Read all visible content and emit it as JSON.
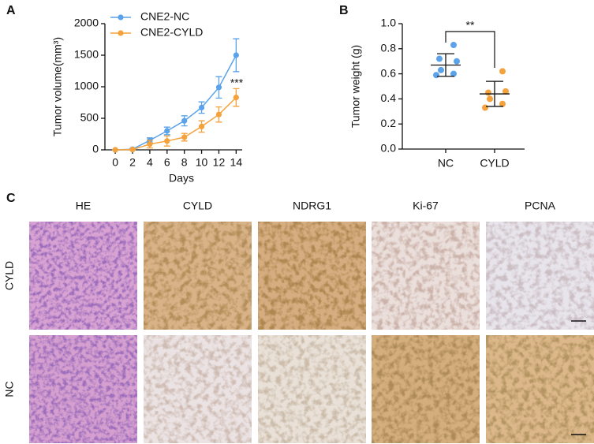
{
  "chart_data": [
    {
      "type": "line",
      "ylabel": "Tumor volume(mm³)",
      "xlabel": "Days",
      "x": [
        0,
        2,
        4,
        6,
        8,
        10,
        12,
        14
      ],
      "series": [
        {
          "name": "CNE2-NC",
          "color": "#5aa2ea",
          "values": [
            0,
            10,
            150,
            300,
            460,
            670,
            990,
            1500
          ],
          "errors": [
            0,
            10,
            40,
            60,
            80,
            90,
            170,
            260
          ]
        },
        {
          "name": "CNE2-CYLD",
          "color": "#f5a23c",
          "values": [
            0,
            5,
            90,
            140,
            200,
            370,
            560,
            830
          ],
          "errors": [
            0,
            5,
            60,
            80,
            60,
            90,
            120,
            140
          ]
        }
      ],
      "xlim": [
        -1.2,
        14.7
      ],
      "xticks": [
        0,
        2,
        4,
        6,
        8,
        10,
        12,
        14
      ],
      "ylim": [
        0,
        2000
      ],
      "yticks": [
        0,
        500,
        1000,
        1500,
        2000
      ],
      "annotation": "***",
      "legend": "top-left"
    },
    {
      "type": "dot",
      "ylabel": "Tumor weight (g)",
      "categories": [
        "NC",
        "CYLD"
      ],
      "groups": [
        {
          "color": "#5aa2ea",
          "values": [
            0.83,
            0.72,
            0.7,
            0.63,
            0.6,
            0.59
          ],
          "mean": 0.67,
          "sd": 0.09
        },
        {
          "color": "#f5a23c",
          "values": [
            0.62,
            0.45,
            0.46,
            0.4,
            0.36,
            0.33
          ],
          "mean": 0.44,
          "sd": 0.1
        }
      ],
      "ylim": [
        0,
        1.0
      ],
      "yticks": [
        {
          "value": 0,
          "label": "0.0"
        },
        0.2,
        0.4,
        0.6,
        0.8,
        {
          "value": 1.0,
          "label": "1.0"
        }
      ],
      "annotation": "**"
    }
  ],
  "panel_labels": [
    "A",
    "B",
    "C"
  ],
  "image_grid": {
    "columns": [
      "HE",
      "CYLD",
      "NDRG1",
      "Ki-67",
      "PCNA"
    ],
    "rows": [
      "CYLD",
      "NC"
    ]
  }
}
